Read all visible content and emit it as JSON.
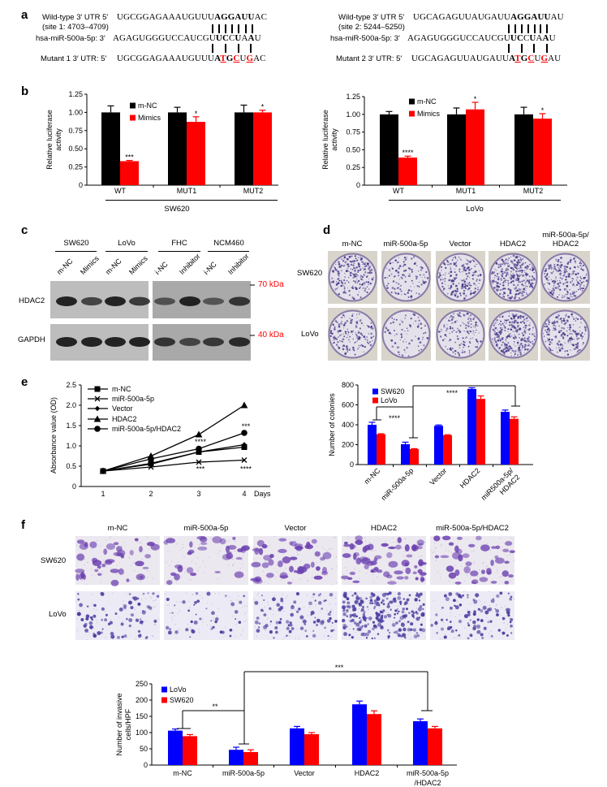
{
  "panel_letters": {
    "a": "a",
    "b": "b",
    "c": "c",
    "d": "d",
    "e": "e",
    "f": "f"
  },
  "panel_a": {
    "sites": [
      {
        "wt_label": "Wild-type 3′ UTR 5′",
        "site": "(site 1: 4703–4709)",
        "wt_seq": [
          [
            "UGCGGAGAAAUGUUU",
            ""
          ],
          [
            "AGGAUU",
            "b"
          ],
          [
            "AC",
            ""
          ]
        ],
        "mir_label": "hsa-miR-500a-5p: 3′",
        "mir_seq": [
          [
            "AGAGUGGGUCCAUCGU",
            ""
          ],
          [
            "U",
            "b"
          ],
          [
            "C",
            "b"
          ],
          [
            "C",
            ""
          ],
          [
            "U",
            "b"
          ],
          [
            "A",
            ""
          ],
          [
            "A",
            "b"
          ],
          [
            "U",
            ""
          ]
        ],
        "mut_label": "Mutant 1 3′ UTR: 5′",
        "mut_seq": [
          [
            "UGCGGAGAAAUGUUU",
            ""
          ],
          [
            "A",
            "b"
          ],
          [
            "T",
            "r"
          ],
          [
            "G",
            "b"
          ],
          [
            "C",
            "r"
          ],
          [
            "U",
            ""
          ],
          [
            "G",
            "r"
          ],
          [
            "AC",
            ""
          ]
        ]
      },
      {
        "wt_label": "Wild-type 3′ UTR 5′",
        "site": "(site 2: 5244–5250)",
        "wt_seq": [
          [
            "UGCAGAGUUAUGAUU",
            ""
          ],
          [
            "AGGAUU",
            "b"
          ],
          [
            "AU",
            ""
          ]
        ],
        "mir_label": "hsa-miR-500a-5p: 3′",
        "mir_seq": [
          [
            "AGAGUGGGUCCAUCGU",
            ""
          ],
          [
            "U",
            "b"
          ],
          [
            "C",
            "b"
          ],
          [
            "C",
            ""
          ],
          [
            "U",
            "b"
          ],
          [
            "A",
            ""
          ],
          [
            "A",
            "b"
          ],
          [
            "U",
            ""
          ]
        ],
        "mut_label": "Mutant 2 3′ UTR: 5′",
        "mut_seq": [
          [
            "UGCAGAGUUAUGAUU",
            ""
          ],
          [
            "A",
            "b"
          ],
          [
            "T",
            "r"
          ],
          [
            "G",
            "b"
          ],
          [
            "C",
            "r"
          ],
          [
            "U",
            ""
          ],
          [
            "G",
            "r"
          ],
          [
            "AU",
            ""
          ]
        ]
      }
    ],
    "mutation_color": "#ff0000"
  },
  "panel_b": {
    "left_group": "SW620",
    "right_group": "LoVo"
  },
  "panel_c": {
    "groups": [
      "SW620",
      "LoVo",
      "FHC",
      "NCM460"
    ],
    "lanes": [
      "m-NC",
      "Mimics",
      "m-NC",
      "Mimics",
      "i-NC",
      "Inhibitor",
      "i-NC",
      "Inhibitor"
    ],
    "rows": [
      "HDAC2",
      "GAPDH"
    ],
    "markers": [
      "70 kDa",
      "40 kDa"
    ],
    "marker_color": "#ff0000"
  },
  "panel_d": {
    "columns": [
      "m-NC",
      "miR-500a-5p",
      "Vector",
      "HDAC2"
    ],
    "last_column": [
      "miR-500a-5p/",
      "HDAC2"
    ],
    "rows": [
      "SW620",
      "LoVo"
    ]
  },
  "panel_f": {
    "columns": [
      "m-NC",
      "miR-500a-5p",
      "Vector",
      "HDAC2",
      "miR-500a-5p/HDAC2"
    ],
    "rows": [
      "SW620",
      "LoVo"
    ]
  },
  "chart_data": [
    {
      "type": "bar",
      "panel": "b-left",
      "categories": [
        "WT",
        "MUT1",
        "MUT2"
      ],
      "ylabel": "Relative luciferase activity",
      "xlabel": "",
      "ylim": [
        0,
        1.25
      ],
      "yticks": [
        "0",
        "0.25",
        "0.50",
        "0.75",
        "1.00",
        "1.25"
      ],
      "legend_placement": "top-left",
      "series": [
        {
          "name": "m-NC",
          "color": "#000000",
          "values": [
            1.0,
            1.0,
            1.0
          ],
          "errors": [
            0.09,
            0.07,
            0.1
          ]
        },
        {
          "name": "Mimics",
          "color": "#ff0000",
          "values": [
            0.33,
            0.87,
            1.0
          ],
          "errors": [
            0.01,
            0.07,
            0.03
          ]
        }
      ],
      "significance": [
        "***",
        "*",
        "*"
      ]
    },
    {
      "type": "bar",
      "panel": "b-right",
      "categories": [
        "WT",
        "MUT1",
        "MUT2"
      ],
      "ylabel": "Relative luciferase activity",
      "xlabel": "",
      "ylim": [
        0,
        1.25
      ],
      "yticks": [
        "0",
        "0.25",
        "0.50",
        "0.75",
        "1.00",
        "1.25"
      ],
      "legend_placement": "top-left",
      "series": [
        {
          "name": "m-NC",
          "color": "#000000",
          "values": [
            1.0,
            1.0,
            1.0
          ],
          "errors": [
            0.04,
            0.09,
            0.1
          ]
        },
        {
          "name": "Mimics",
          "color": "#ff0000",
          "values": [
            0.39,
            1.07,
            0.94
          ],
          "errors": [
            0.02,
            0.1,
            0.07
          ]
        }
      ],
      "significance": [
        "****",
        "*",
        "*"
      ]
    },
    {
      "type": "line",
      "panel": "e",
      "x": [
        1,
        2,
        3,
        4
      ],
      "xticks": [
        "1",
        "2",
        "3",
        "4"
      ],
      "xlabel": "Days",
      "ylabel": "Absorbance value (OD)",
      "ylim": [
        0,
        2.5
      ],
      "yticks": [
        "0",
        "0.5",
        "1.0",
        "1.5",
        "2.0",
        "2.5"
      ],
      "legend_placement": "top-left",
      "series": [
        {
          "name": "m-NC",
          "marker": "square",
          "values": [
            0.38,
            0.57,
            0.85,
            0.97
          ]
        },
        {
          "name": "miR-500a-5p",
          "marker": "x-cross",
          "values": [
            0.38,
            0.48,
            0.6,
            0.65
          ]
        },
        {
          "name": "Vector",
          "marker": "diamond",
          "values": [
            0.38,
            0.55,
            0.85,
            1.03
          ]
        },
        {
          "name": "HDAC2",
          "marker": "triangle",
          "values": [
            0.38,
            0.75,
            1.28,
            2.0
          ]
        },
        {
          "name": "miR-500a-5p/HDAC2",
          "marker": "circle",
          "values": [
            0.38,
            0.68,
            0.93,
            1.32
          ]
        }
      ],
      "annotations": [
        {
          "x": 3,
          "y": 1.1,
          "text": "****"
        },
        {
          "x": 3,
          "y": 0.43,
          "text": "***"
        },
        {
          "x": 4,
          "y": 1.48,
          "text": "***"
        },
        {
          "x": 4,
          "y": 0.43,
          "text": "****"
        }
      ]
    },
    {
      "type": "bar",
      "panel": "d-quant",
      "categories": [
        "m-NC",
        "miR-500a-5p",
        "Vector",
        "HDAC2",
        "miR500a-5p/HDAC2"
      ],
      "ylabel": "Number of colonies",
      "xlabel": "",
      "ylim": [
        0,
        800
      ],
      "yticks": [
        "0",
        "200",
        "400",
        "600",
        "800"
      ],
      "legend_placement": "top-left",
      "series": [
        {
          "name": "SW620",
          "color": "#0000ff",
          "values": [
            400,
            205,
            390,
            760,
            530
          ],
          "errors": [
            25,
            20,
            8,
            12,
            18
          ]
        },
        {
          "name": "LoVo",
          "color": "#ff0000",
          "values": [
            305,
            155,
            295,
            660,
            460
          ],
          "errors": [
            5,
            5,
            5,
            30,
            20
          ]
        }
      ],
      "annotations": [
        {
          "text": "****",
          "between": [
            "m-NC",
            "miR-500a-5p"
          ]
        },
        {
          "text": "****",
          "between": [
            "miR-500a-5p",
            "miR500a-5p/HDAC2"
          ]
        }
      ]
    },
    {
      "type": "bar",
      "panel": "f-quant",
      "categories": [
        "m-NC",
        "miR-500a-5p",
        "Vector",
        "HDAC2",
        "miR-500a-5p/HDAC2"
      ],
      "ylabel": "Number of invasive cells/HPF",
      "xlabel": "",
      "ylim": [
        0,
        250
      ],
      "yticks": [
        "0",
        "50",
        "100",
        "150",
        "200",
        "250"
      ],
      "legend_placement": "top-left",
      "series": [
        {
          "name": "LoVo",
          "color": "#0000ff",
          "values": [
            106,
            47,
            113,
            187,
            135
          ],
          "errors": [
            5,
            8,
            6,
            10,
            7
          ]
        },
        {
          "name": "SW620",
          "color": "#ff0000",
          "values": [
            89,
            40,
            95,
            157,
            113
          ],
          "errors": [
            5,
            7,
            5,
            10,
            6
          ]
        }
      ],
      "annotations": [
        {
          "text": "**",
          "between": [
            "m-NC",
            "miR-500a-5p"
          ]
        },
        {
          "text": "***",
          "between": [
            "miR-500a-5p",
            "miR-500a-5p/HDAC2"
          ]
        }
      ]
    }
  ]
}
